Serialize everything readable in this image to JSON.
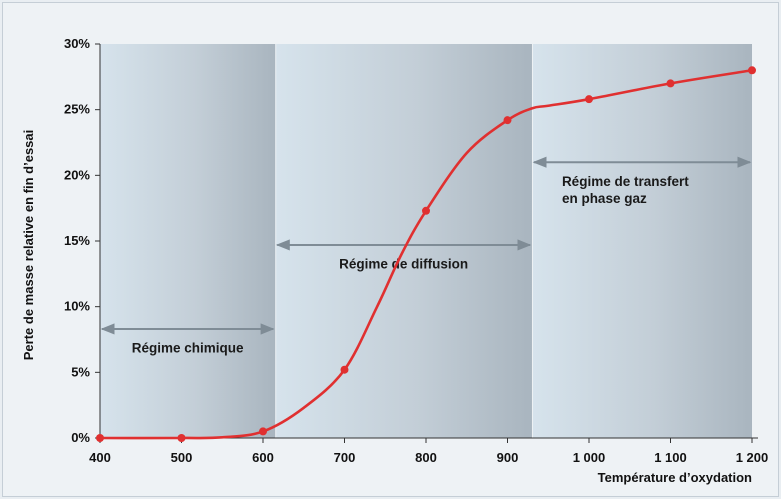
{
  "chart_data": {
    "type": "line",
    "title": "",
    "xlabel": "Température d’oxydation",
    "ylabel": "Perte de masse relative en fin d’essai",
    "xlim": [
      400,
      1200
    ],
    "ylim": [
      0,
      30
    ],
    "x_ticks": [
      {
        "value": 400,
        "label": "400"
      },
      {
        "value": 500,
        "label": "500"
      },
      {
        "value": 600,
        "label": "600"
      },
      {
        "value": 700,
        "label": "700"
      },
      {
        "value": 800,
        "label": "800"
      },
      {
        "value": 900,
        "label": "900"
      },
      {
        "value": 1000,
        "label": "1 000"
      },
      {
        "value": 1100,
        "label": "1 100"
      },
      {
        "value": 1200,
        "label": "1 200"
      }
    ],
    "y_ticks": [
      {
        "value": 0,
        "label": "0%"
      },
      {
        "value": 5,
        "label": "5%"
      },
      {
        "value": 10,
        "label": "10%"
      },
      {
        "value": 15,
        "label": "15%"
      },
      {
        "value": 20,
        "label": "20%"
      },
      {
        "value": 25,
        "label": "25%"
      },
      {
        "value": 30,
        "label": "30%"
      }
    ],
    "series": [
      {
        "color": "#e03030",
        "points": [
          {
            "x": 400,
            "y": 0.0
          },
          {
            "x": 500,
            "y": 0.0
          },
          {
            "x": 600,
            "y": 0.5
          },
          {
            "x": 700,
            "y": 5.2
          },
          {
            "x": 800,
            "y": 17.3
          },
          {
            "x": 900,
            "y": 24.2
          },
          {
            "x": 1000,
            "y": 25.8
          },
          {
            "x": 1100,
            "y": 27.0
          },
          {
            "x": 1200,
            "y": 28.0
          }
        ],
        "curve": [
          [
            400,
            0.0
          ],
          [
            500,
            0.0
          ],
          [
            550,
            0.05
          ],
          [
            600,
            0.5
          ],
          [
            650,
            2.3
          ],
          [
            700,
            5.2
          ],
          [
            740,
            10.0
          ],
          [
            770,
            14.0
          ],
          [
            800,
            17.3
          ],
          [
            850,
            21.7
          ],
          [
            900,
            24.2
          ],
          [
            930,
            25.1
          ],
          [
            950,
            25.3
          ],
          [
            1000,
            25.8
          ],
          [
            1100,
            27.0
          ],
          [
            1200,
            28.0
          ]
        ]
      }
    ],
    "regions": [
      {
        "x_start": 400,
        "x_end": 615,
        "label": "Régime chimique",
        "label_lines": [
          "Régime chimique"
        ],
        "arrow_y": 8.3,
        "label_y": 6.5
      },
      {
        "x_start": 615,
        "x_end": 930,
        "label": "Régime de diffusion",
        "label_lines": [
          "Régime de diffusion"
        ],
        "arrow_y": 14.7,
        "label_y": 12.9
      },
      {
        "x_start": 930,
        "x_end": 1200,
        "label": "Régime de transfert en phase gaz",
        "label_lines": [
          "Régime de transfert",
          "en phase gaz"
        ],
        "arrow_y": 21.0,
        "label_y": 19.2
      }
    ],
    "grid": false
  }
}
